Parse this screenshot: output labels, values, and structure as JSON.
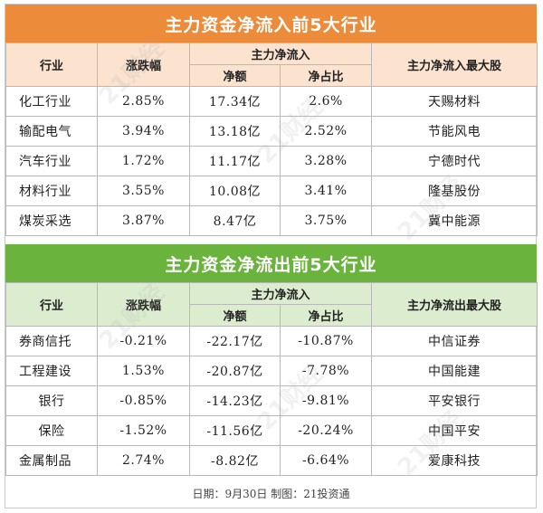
{
  "inflow": {
    "title": "主力资金净流入前5大行业",
    "headers": {
      "industry": "行业",
      "change": "涨跌幅",
      "net_group": "主力净流入",
      "net_amount": "净额",
      "net_ratio": "净占比",
      "top_stock": "主力净流入最大股"
    },
    "rows": [
      {
        "industry": "化工行业",
        "change": "2.85%",
        "net_amount": "17.34亿",
        "net_ratio": "2.6%",
        "top_stock": "天赐材料"
      },
      {
        "industry": "输配电气",
        "change": "3.94%",
        "net_amount": "13.18亿",
        "net_ratio": "2.52%",
        "top_stock": "节能风电"
      },
      {
        "industry": "汽车行业",
        "change": "1.72%",
        "net_amount": "11.17亿",
        "net_ratio": "3.28%",
        "top_stock": "宁德时代"
      },
      {
        "industry": "材料行业",
        "change": "3.55%",
        "net_amount": "10.08亿",
        "net_ratio": "3.41%",
        "top_stock": "隆基股份"
      },
      {
        "industry": "煤炭采选",
        "change": "3.87%",
        "net_amount": "8.47亿",
        "net_ratio": "3.75%",
        "top_stock": "冀中能源"
      }
    ]
  },
  "outflow": {
    "title": "主力资金净流出前5大行业",
    "headers": {
      "industry": "行业",
      "change": "涨跌幅",
      "net_group": "主力净流入",
      "net_amount": "净额",
      "net_ratio": "净占比",
      "top_stock": "主力净流出最大股"
    },
    "rows": [
      {
        "industry": "券商信托",
        "change": "-0.21%",
        "net_amount": "-22.17亿",
        "net_ratio": "-10.87%",
        "top_stock": "中信证券"
      },
      {
        "industry": "工程建设",
        "change": "1.53%",
        "net_amount": "-20.87亿",
        "net_ratio": "-7.78%",
        "top_stock": "中国能建"
      },
      {
        "industry": "银行",
        "change": "-0.85%",
        "net_amount": "-14.23亿",
        "net_ratio": "-9.81%",
        "top_stock": "平安银行"
      },
      {
        "industry": "保险",
        "change": "-1.52%",
        "net_amount": "-11.56亿",
        "net_ratio": "-20.24%",
        "top_stock": "中国平安"
      },
      {
        "industry": "金属制品",
        "change": "2.74%",
        "net_amount": "-8.82亿",
        "net_ratio": "-6.64%",
        "top_stock": "爱康科技"
      }
    ]
  },
  "footer": "日期：9月30日 制图：21投资通",
  "watermark": "21财经",
  "colors": {
    "inflow_banner": "#ec8b3a",
    "inflow_header": "#fbe3d0",
    "outflow_banner": "#6ab43e",
    "outflow_header": "#dcedcf"
  }
}
